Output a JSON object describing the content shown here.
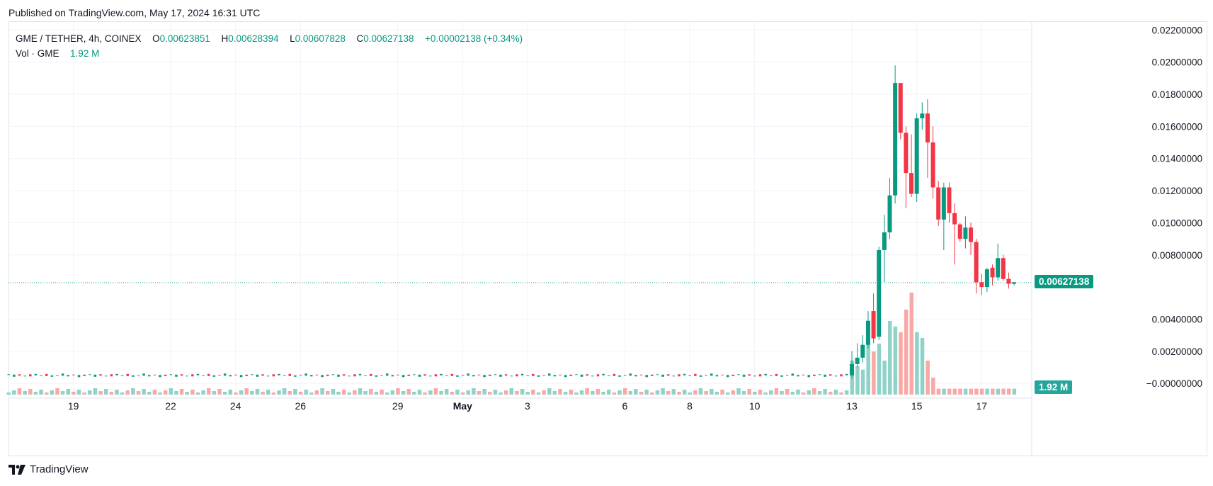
{
  "header": {
    "published": "Published on TradingView.com, May 17, 2024 16:31 UTC"
  },
  "legend": {
    "symbol": "GME / TETHER, 4h, COINEX",
    "open_label": "O",
    "open": "0.00623851",
    "high_label": "H",
    "high": "0.00628394",
    "low_label": "L",
    "low": "0.00607828",
    "close_label": "C",
    "close": "0.00627138",
    "change": "+0.00002138 (+0.34%)",
    "volume_label": "Vol · GME",
    "volume": "1.92 M"
  },
  "footer": {
    "brand": "TradingView",
    "logo_icon": "tradingview-logo-icon"
  },
  "price_tag": {
    "value": "0.00627138",
    "color": "#089981"
  },
  "volume_tag": {
    "value": "1.92 M",
    "color": "#26a69a"
  },
  "colors": {
    "up": "#089981",
    "down": "#f23645",
    "vol_up": "#8fd3c8",
    "vol_down": "#f7a9a7",
    "grid": "#f0f3fa"
  },
  "chart_data": {
    "type": "candlestick",
    "symbol": "GME / TETHER",
    "interval": "4h",
    "exchange": "COINEX",
    "y_axis": {
      "position": "right",
      "ticks": [
        "0.02200000",
        "0.02000000",
        "0.01800000",
        "0.01600000",
        "0.01400000",
        "0.01200000",
        "0.01000000",
        "0.00800000",
        "0.00400000",
        "0.00200000",
        "−0.00000000"
      ],
      "range": [
        -0.0007,
        0.0225
      ]
    },
    "x_axis": {
      "ticks": [
        "19",
        "22",
        "24",
        "26",
        "29",
        "May",
        "3",
        "6",
        "8",
        "10",
        "13",
        "15",
        "17"
      ],
      "tick_dates": [
        "2024-04-19",
        "2024-04-22",
        "2024-04-24",
        "2024-04-26",
        "2024-04-29",
        "2024-05-01",
        "2024-05-03",
        "2024-05-06",
        "2024-05-08",
        "2024-05-10",
        "2024-05-13",
        "2024-05-15",
        "2024-05-17"
      ],
      "range": [
        "2024-04-17T00:00",
        "2024-05-18T12:00"
      ]
    },
    "grid": true,
    "last_price": 0.00627138,
    "last_volume": "1.92 M",
    "flat_period": {
      "from": "2024-04-17T00:00",
      "to": "2024-05-13T00:00",
      "price": 0.0005
    },
    "candles": [
      {
        "t": "2024-05-13T00:00",
        "o": 0.0005,
        "h": 0.002,
        "l": 0.0003,
        "c": 0.0012
      },
      {
        "t": "2024-05-13T04:00",
        "o": 0.0012,
        "h": 0.0025,
        "l": 0.001,
        "c": 0.0016
      },
      {
        "t": "2024-05-13T08:00",
        "o": 0.0016,
        "h": 0.003,
        "l": 0.0013,
        "c": 0.0024
      },
      {
        "t": "2024-05-13T12:00",
        "o": 0.0024,
        "h": 0.0045,
        "l": 0.0022,
        "c": 0.0039
      },
      {
        "t": "2024-05-13T16:00",
        "o": 0.0045,
        "h": 0.0056,
        "l": 0.0025,
        "c": 0.0028
      },
      {
        "t": "2024-05-13T20:00",
        "o": 0.0029,
        "h": 0.0085,
        "l": 0.0027,
        "c": 0.0083
      },
      {
        "t": "2024-05-14T00:00",
        "o": 0.0083,
        "h": 0.0105,
        "l": 0.0063,
        "c": 0.0094
      },
      {
        "t": "2024-05-14T04:00",
        "o": 0.0094,
        "h": 0.0128,
        "l": 0.009,
        "c": 0.0117
      },
      {
        "t": "2024-05-14T08:00",
        "o": 0.0117,
        "h": 0.0198,
        "l": 0.0112,
        "c": 0.0187
      },
      {
        "t": "2024-05-14T12:00",
        "o": 0.0187,
        "h": 0.0187,
        "l": 0.0152,
        "c": 0.0156
      },
      {
        "t": "2024-05-14T16:00",
        "o": 0.0156,
        "h": 0.016,
        "l": 0.0109,
        "c": 0.0131
      },
      {
        "t": "2024-05-14T20:00",
        "o": 0.0131,
        "h": 0.0155,
        "l": 0.0116,
        "c": 0.0118
      },
      {
        "t": "2024-05-15T00:00",
        "o": 0.0118,
        "h": 0.0168,
        "l": 0.0113,
        "c": 0.0165
      },
      {
        "t": "2024-05-15T04:00",
        "o": 0.0165,
        "h": 0.0175,
        "l": 0.0158,
        "c": 0.0168
      },
      {
        "t": "2024-05-15T08:00",
        "o": 0.0168,
        "h": 0.0177,
        "l": 0.0128,
        "c": 0.015
      },
      {
        "t": "2024-05-15T12:00",
        "o": 0.015,
        "h": 0.016,
        "l": 0.0115,
        "c": 0.0122
      },
      {
        "t": "2024-05-15T16:00",
        "o": 0.0122,
        "h": 0.0126,
        "l": 0.0098,
        "c": 0.0102
      },
      {
        "t": "2024-05-15T20:00",
        "o": 0.0102,
        "h": 0.0125,
        "l": 0.0083,
        "c": 0.0122
      },
      {
        "t": "2024-05-16T00:00",
        "o": 0.0122,
        "h": 0.0125,
        "l": 0.01,
        "c": 0.0106
      },
      {
        "t": "2024-05-16T04:00",
        "o": 0.0106,
        "h": 0.0112,
        "l": 0.0074,
        "c": 0.0099
      },
      {
        "t": "2024-05-16T08:00",
        "o": 0.0099,
        "h": 0.01,
        "l": 0.0088,
        "c": 0.009
      },
      {
        "t": "2024-05-16T12:00",
        "o": 0.009,
        "h": 0.0104,
        "l": 0.0084,
        "c": 0.0097
      },
      {
        "t": "2024-05-16T16:00",
        "o": 0.0097,
        "h": 0.01,
        "l": 0.008,
        "c": 0.0088
      },
      {
        "t": "2024-05-16T20:00",
        "o": 0.0088,
        "h": 0.009,
        "l": 0.0056,
        "c": 0.0063
      },
      {
        "t": "2024-05-17T00:00",
        "o": 0.0063,
        "h": 0.0068,
        "l": 0.0055,
        "c": 0.006
      },
      {
        "t": "2024-05-17T04:00",
        "o": 0.006,
        "h": 0.0072,
        "l": 0.0057,
        "c": 0.0071
      },
      {
        "t": "2024-05-17T08:00",
        "o": 0.0072,
        "h": 0.0074,
        "l": 0.0061,
        "c": 0.0066
      },
      {
        "t": "2024-05-17T12:00",
        "o": 0.0066,
        "h": 0.0087,
        "l": 0.0064,
        "c": 0.0078
      },
      {
        "t": "2024-05-17T16:00",
        "o": 0.0078,
        "h": 0.008,
        "l": 0.0064,
        "c": 0.0065
      },
      {
        "t": "2024-05-17T20:00",
        "o": 0.0065,
        "h": 0.0069,
        "l": 0.0059,
        "c": 0.0062
      },
      {
        "t": "2024-05-18T00:00",
        "o": 0.0062,
        "h": 0.0063,
        "l": 0.0061,
        "c": 0.0063
      }
    ],
    "volume_bars": [
      0.3,
      0.25,
      0.22,
      0.5,
      0.38,
      0.45,
      0.3,
      0.65,
      0.6,
      0.55,
      0.75,
      0.9,
      0.55,
      0.5,
      0.3,
      0.15
    ]
  }
}
